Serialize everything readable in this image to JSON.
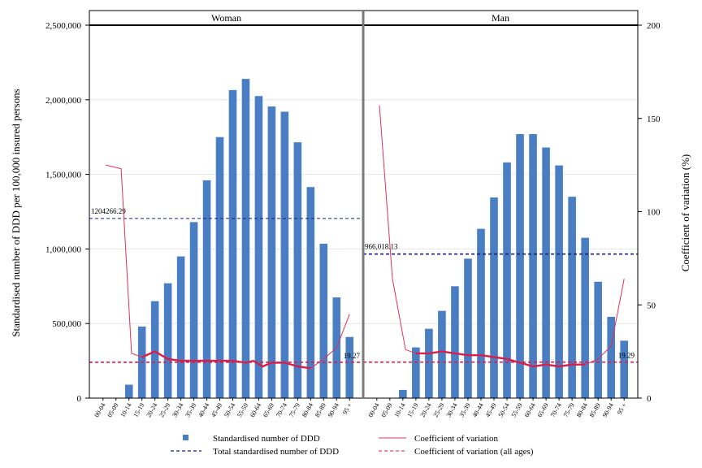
{
  "chart_data": {
    "type": "bar",
    "ylabel": "Standardised number of DDD per 100,000 insured persons",
    "y2label": "Coefficient of variation (%)",
    "ylim": [
      0,
      2500000
    ],
    "y2lim": [
      0,
      200
    ],
    "yticks": [
      "0",
      "500,000",
      "1,000,000",
      "1,500,000",
      "2,000,000",
      "2,500,000"
    ],
    "y2ticks": [
      "0",
      "50",
      "100",
      "150",
      "200"
    ],
    "categories": [
      "00-04",
      "05-09",
      "10-14",
      "15-19",
      "20-24",
      "25-29",
      "30-34",
      "35-39",
      "40-44",
      "45-49",
      "50-54",
      "55-59",
      "60-64",
      "65-69",
      "70-74",
      "75-79",
      "80-84",
      "85-89",
      "90-94",
      "95 +"
    ],
    "legend": {
      "bar": "Standardised number of DDD",
      "cv": "Coefficient of variation",
      "total": "Total standardised number of DDD",
      "cv_all": "Coefficient of variation (all ages)"
    },
    "colors": {
      "bar": "#4a7ec4",
      "total": "#1a1f7a",
      "cv_thin": "#e0305a",
      "cv_thick": "#d81e4a",
      "cv_all": "#d81e4a"
    },
    "panels": [
      {
        "title": "Woman",
        "bars": [
          0,
          0,
          90000,
          480000,
          650000,
          770000,
          950000,
          1180000,
          1460000,
          1750000,
          2065000,
          2140000,
          2025000,
          1955000,
          1920000,
          1715000,
          1415000,
          1035000,
          675000,
          410000
        ],
        "cv": [
          125,
          123,
          24,
          22,
          25,
          21,
          20,
          20,
          20,
          20,
          20,
          19,
          20,
          17,
          19,
          19,
          17,
          16,
          21,
          27,
          45
        ],
        "cv_x": [
          0.2,
          1.4,
          2.2,
          3,
          4,
          5,
          6,
          7,
          8,
          9,
          10,
          11,
          11.6,
          12.3,
          13,
          14,
          15,
          16,
          17,
          18,
          19
        ],
        "total": 1204266.29,
        "total_label": "1204266.29",
        "cv_all": 19.27,
        "cv_all_label": "19.27"
      },
      {
        "title": "Man",
        "bars": [
          0,
          0,
          55000,
          340000,
          465000,
          585000,
          750000,
          935000,
          1135000,
          1345000,
          1580000,
          1770000,
          1770000,
          1680000,
          1560000,
          1350000,
          1075000,
          780000,
          545000,
          385000
        ],
        "cv": [
          157,
          64,
          26,
          24,
          24,
          25,
          24,
          23,
          23,
          22,
          21,
          19,
          17,
          18,
          17,
          18,
          18,
          21,
          28,
          64
        ],
        "cv_x": [
          0.2,
          1.2,
          2.2,
          3,
          4,
          5,
          6,
          7,
          8,
          9,
          10,
          11,
          12,
          13,
          14,
          15,
          16,
          17,
          18,
          19
        ],
        "total": 966018.13,
        "total_label": "966,018.13",
        "cv_all": 19.29,
        "cv_all_label": "19.29"
      }
    ]
  }
}
